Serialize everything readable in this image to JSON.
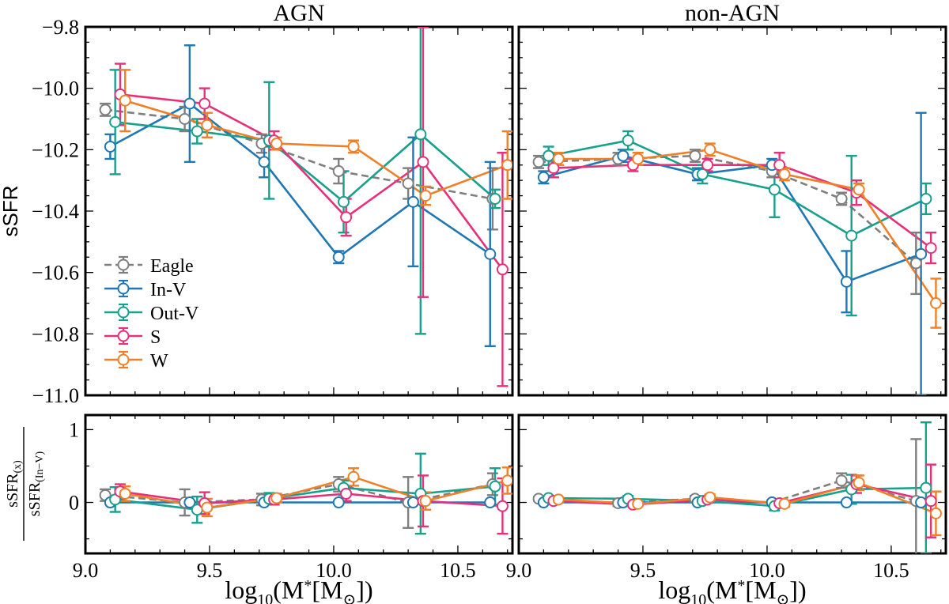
{
  "chart_data": {
    "type": "line",
    "x_scale": "log10 stellar mass",
    "xlim": [
      9.0,
      10.72
    ],
    "x_ticks": [
      9.0,
      9.5,
      10.0,
      10.5
    ],
    "x_tick_labels": [
      "9.0",
      "9.5",
      "10.0",
      "10.5"
    ],
    "xlabel": "log10(M*[M⊙])",
    "top_ylabel": "sSFR",
    "top_ylim": [
      -11.0,
      -9.8
    ],
    "top_ticks": [
      -11.0,
      -10.8,
      -10.6,
      -10.4,
      -10.2,
      -10.0,
      -9.8
    ],
    "top_tick_labels": [
      "−11.0",
      "−10.8",
      "−10.6",
      "−10.4",
      "−10.2",
      "−10.0",
      "−9.8"
    ],
    "bottom_ylabel_numerator": "sSFR(x)",
    "bottom_ylabel_denominator": "sSFR(In−V)",
    "bottom_ylim": [
      -0.7,
      1.2
    ],
    "bottom_ticks": [
      0,
      1
    ],
    "bottom_tick_labels": [
      "0",
      "1"
    ],
    "legend": [
      "Eagle",
      "In-V",
      "Out-V",
      "S",
      "W"
    ],
    "legend_position": "lower-left of top-left panel",
    "series_styles": [
      {
        "name": "Eagle",
        "color": "#7f7f7f",
        "dash": true
      },
      {
        "name": "In-V",
        "color": "#1f77b4",
        "dash": false
      },
      {
        "name": "Out-V",
        "color": "#17a08c",
        "dash": false
      },
      {
        "name": "S",
        "color": "#e7307a",
        "dash": false
      },
      {
        "name": "W",
        "color": "#f07f27",
        "dash": false
      }
    ],
    "panels": [
      {
        "title": "AGN",
        "series": [
          {
            "name": "Eagle",
            "x": [
              9.08,
              9.4,
              9.71,
              10.02,
              10.3,
              10.64
            ],
            "y": [
              -10.07,
              -10.1,
              -10.18,
              -10.27,
              -10.31,
              -10.36
            ],
            "yerr": [
              0.02,
              0.04,
              0.03,
              0.04,
              0.05,
              0.1
            ]
          },
          {
            "name": "In-V",
            "x": [
              9.1,
              9.42,
              9.72,
              10.02,
              10.32,
              10.63
            ],
            "y": [
              -10.19,
              -10.05,
              -10.24,
              -10.55,
              -10.37,
              -10.54
            ],
            "yerr": [
              0.04,
              0.19,
              0.05,
              0.02,
              0.21,
              0.3
            ]
          },
          {
            "name": "Out-V",
            "x": [
              9.12,
              9.45,
              9.74,
              10.04,
              10.35,
              10.65
            ],
            "y": [
              -10.11,
              -10.14,
              -10.17,
              -10.37,
              -10.15,
              -10.36
            ],
            "yerr": [
              0.17,
              0.04,
              0.19,
              0.1,
              0.65,
              0.03
            ]
          },
          {
            "name": "S",
            "x": [
              9.14,
              9.48,
              9.76,
              10.05,
              10.36,
              10.68
            ],
            "y": [
              -10.02,
              -10.05,
              -10.17,
              -10.42,
              -10.24,
              -10.59
            ],
            "yerr": [
              0.1,
              0.05,
              0.03,
              0.06,
              0.44,
              0.38
            ]
          },
          {
            "name": "W",
            "x": [
              9.16,
              9.49,
              9.77,
              10.08,
              10.37,
              10.7
            ],
            "y": [
              -10.04,
              -10.12,
              -10.18,
              -10.19,
              -10.35,
              -10.25
            ],
            "yerr": [
              0.1,
              0.04,
              0.02,
              0.02,
              0.03,
              0.11
            ]
          }
        ],
        "ratio_series": [
          {
            "name": "Eagle",
            "x": [
              9.08,
              9.4,
              9.71,
              10.02,
              10.3,
              10.64
            ],
            "y": [
              0.1,
              0.0,
              0.04,
              0.25,
              0.0,
              0.25
            ],
            "yerr": [
              0.08,
              0.18,
              0.08,
              0.1,
              0.35,
              0.15
            ]
          },
          {
            "name": "In-V",
            "x": [
              9.1,
              9.42,
              9.72,
              10.02,
              10.32,
              10.63
            ],
            "y": [
              0.0,
              0.0,
              0.0,
              0.0,
              0.0,
              0.0
            ],
            "yerr": [
              0.0,
              0.0,
              0.0,
              0.0,
              0.0,
              0.0
            ]
          },
          {
            "name": "Out-V",
            "x": [
              9.12,
              9.45,
              9.74,
              10.04,
              10.35,
              10.65
            ],
            "y": [
              0.04,
              -0.1,
              0.05,
              0.2,
              0.12,
              0.22
            ],
            "yerr": [
              0.17,
              0.18,
              0.08,
              0.1,
              0.55,
              0.25
            ]
          },
          {
            "name": "S",
            "x": [
              9.14,
              9.48,
              9.76,
              10.05,
              10.36,
              10.68
            ],
            "y": [
              0.15,
              -0.01,
              0.04,
              0.12,
              0.02,
              -0.05
            ],
            "yerr": [
              0.1,
              0.15,
              0.07,
              0.1,
              0.35,
              0.38
            ]
          },
          {
            "name": "W",
            "x": [
              9.16,
              9.49,
              9.77,
              10.08,
              10.37,
              10.7
            ],
            "y": [
              0.12,
              -0.07,
              0.06,
              0.35,
              0.02,
              0.3
            ],
            "yerr": [
              0.1,
              0.12,
              0.06,
              0.12,
              0.12,
              0.18
            ]
          }
        ]
      },
      {
        "title": "non-AGN",
        "series": [
          {
            "name": "Eagle",
            "x": [
              9.08,
              9.4,
              9.71,
              10.02,
              10.3,
              10.6
            ],
            "y": [
              -10.24,
              -10.23,
              -10.22,
              -10.27,
              -10.36,
              -10.57
            ],
            "yerr": [
              0.02,
              0.02,
              0.02,
              0.02,
              0.02,
              0.1
            ]
          },
          {
            "name": "In-V",
            "x": [
              9.1,
              9.42,
              9.72,
              10.02,
              10.32,
              10.62
            ],
            "y": [
              -10.29,
              -10.22,
              -10.28,
              -10.25,
              -10.63,
              -10.54
            ],
            "yerr": [
              0.02,
              0.02,
              0.02,
              0.02,
              0.1,
              0.46
            ]
          },
          {
            "name": "Out-V",
            "x": [
              9.12,
              9.44,
              9.74,
              10.03,
              10.34,
              10.64
            ],
            "y": [
              -10.22,
              -10.17,
              -10.28,
              -10.33,
              -10.48,
              -10.36
            ],
            "yerr": [
              0.03,
              0.03,
              0.03,
              0.09,
              0.26,
              0.05
            ]
          },
          {
            "name": "S",
            "x": [
              9.14,
              9.46,
              9.76,
              10.05,
              10.36,
              10.66
            ],
            "y": [
              -10.26,
              -10.25,
              -10.25,
              -10.25,
              -10.34,
              -10.52
            ],
            "yerr": [
              0.03,
              0.02,
              0.02,
              0.04,
              0.04,
              0.05
            ]
          },
          {
            "name": "W",
            "x": [
              9.16,
              9.48,
              9.77,
              10.07,
              10.37,
              10.68
            ],
            "y": [
              -10.23,
              -10.23,
              -10.2,
              -10.28,
              -10.33,
              -10.7
            ],
            "yerr": [
              0.02,
              0.02,
              0.02,
              0.02,
              0.02,
              0.08
            ]
          }
        ],
        "ratio_series": [
          {
            "name": "Eagle",
            "x": [
              9.08,
              9.4,
              9.71,
              10.02,
              10.3,
              10.6
            ],
            "y": [
              0.05,
              -0.01,
              0.05,
              0.0,
              0.3,
              0.02
            ],
            "yerr": [
              0.03,
              0.04,
              0.04,
              0.03,
              0.1,
              0.85
            ]
          },
          {
            "name": "In-V",
            "x": [
              9.1,
              9.42,
              9.72,
              10.02,
              10.32,
              10.62
            ],
            "y": [
              0.0,
              0.0,
              0.0,
              0.0,
              0.0,
              0.0
            ],
            "yerr": [
              0.0,
              0.0,
              0.0,
              0.0,
              0.0,
              0.0
            ]
          },
          {
            "name": "Out-V",
            "x": [
              9.12,
              9.44,
              9.74,
              10.03,
              10.34,
              10.64
            ],
            "y": [
              0.06,
              0.05,
              0.02,
              -0.05,
              0.18,
              0.2
            ],
            "yerr": [
              0.03,
              0.04,
              0.05,
              0.06,
              0.2,
              0.9
            ]
          },
          {
            "name": "S",
            "x": [
              9.14,
              9.46,
              9.76,
              10.05,
              10.36,
              10.66
            ],
            "y": [
              0.02,
              -0.03,
              0.04,
              -0.01,
              0.25,
              0.02
            ],
            "yerr": [
              0.03,
              0.03,
              0.04,
              0.05,
              0.12,
              0.5
            ]
          },
          {
            "name": "W",
            "x": [
              9.16,
              9.48,
              9.77,
              10.07,
              10.37,
              10.68
            ],
            "y": [
              0.04,
              -0.02,
              0.07,
              -0.02,
              0.27,
              -0.15
            ],
            "yerr": [
              0.03,
              0.03,
              0.04,
              0.04,
              0.1,
              0.3
            ]
          }
        ]
      }
    ]
  }
}
